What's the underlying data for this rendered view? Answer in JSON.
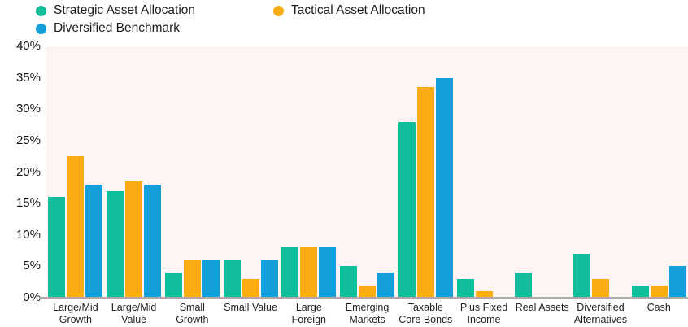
{
  "chart_data": {
    "type": "bar",
    "title": "",
    "categories": [
      "Large/Mid Growth",
      "Large/Mid Value",
      "Small Growth",
      "Small Value",
      "Large Foreign",
      "Emerging Markets",
      "Taxable Core Bonds",
      "Plus Fixed Income",
      "Real Assets",
      "Diversified Alternatives",
      "Cash"
    ],
    "series": [
      {
        "name": "Strategic Asset Allocation",
        "color": "#12BD9B",
        "values": [
          16,
          17,
          4,
          6,
          8,
          5,
          28,
          3,
          4,
          7,
          2
        ]
      },
      {
        "name": "Tactical Asset Allocation",
        "color": "#FBAC12",
        "values": [
          22.5,
          18.5,
          6,
          3,
          8,
          2,
          33.5,
          1,
          0,
          3,
          2
        ]
      },
      {
        "name": "Diversified Benchmark",
        "color": "#149FDB",
        "values": [
          18,
          18,
          6,
          6,
          8,
          4,
          35,
          0,
          0,
          0,
          5
        ]
      }
    ],
    "ylim": [
      0,
      40
    ],
    "yticks": [
      {
        "label": "40%",
        "value": 40
      },
      {
        "label": "35%",
        "value": 35
      },
      {
        "label": "30%",
        "value": 30
      },
      {
        "label": "25%",
        "value": 25
      },
      {
        "label": "20%",
        "value": 20
      },
      {
        "label": "15%",
        "value": 15
      },
      {
        "label": "10%",
        "value": 10
      },
      {
        "label": "5%",
        "value": 5
      },
      {
        "label": "0%",
        "value": 0
      }
    ],
    "legend_position": "top-left",
    "grid": false,
    "plot_background": "#FDF5F3",
    "baseline_color": "#AEAAA7"
  }
}
